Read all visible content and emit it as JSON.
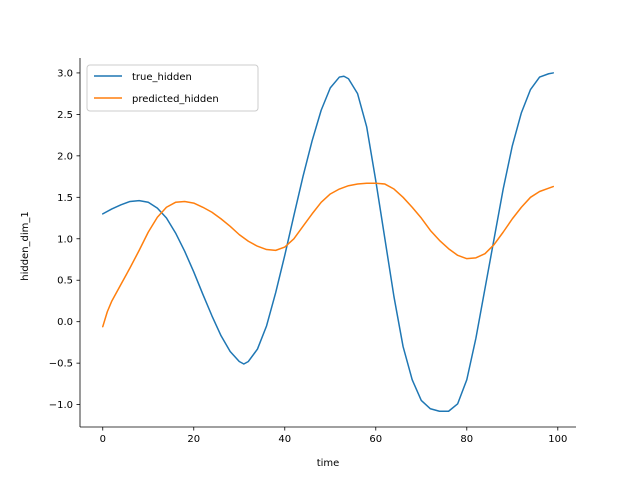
{
  "chart_data": {
    "type": "line",
    "title": "",
    "xlabel": "time",
    "ylabel": "hidden_dim_1",
    "xlim": [
      -5,
      104
    ],
    "ylim": [
      -1.27,
      3.18
    ],
    "xticks": [
      0,
      20,
      40,
      60,
      80,
      100
    ],
    "yticks": [
      -1.0,
      -0.5,
      0.0,
      0.5,
      1.0,
      1.5,
      2.0,
      2.5,
      3.0
    ],
    "ytick_labels": [
      "−1.0",
      "−0.5",
      "0.0",
      "0.5",
      "1.0",
      "1.5",
      "2.0",
      "2.5",
      "3.0"
    ],
    "grid": false,
    "legend_position": "top-left",
    "series": [
      {
        "name": "true_hidden",
        "color": "#1f77b4",
        "x": [
          0,
          2,
          4,
          6,
          8,
          10,
          12,
          14,
          16,
          18,
          20,
          22,
          24,
          26,
          28,
          30,
          31,
          32,
          34,
          36,
          38,
          40,
          42,
          44,
          46,
          48,
          50,
          52,
          53,
          54,
          56,
          58,
          60,
          62,
          64,
          66,
          68,
          70,
          72,
          74,
          76,
          78,
          80,
          82,
          84,
          86,
          88,
          90,
          92,
          94,
          96,
          98,
          99
        ],
        "values": [
          1.3,
          1.36,
          1.41,
          1.45,
          1.46,
          1.44,
          1.37,
          1.25,
          1.07,
          0.85,
          0.6,
          0.33,
          0.07,
          -0.17,
          -0.36,
          -0.48,
          -0.51,
          -0.48,
          -0.33,
          -0.05,
          0.35,
          0.8,
          1.28,
          1.75,
          2.18,
          2.55,
          2.82,
          2.95,
          2.96,
          2.93,
          2.75,
          2.35,
          1.7,
          1.0,
          0.3,
          -0.3,
          -0.7,
          -0.95,
          -1.05,
          -1.08,
          -1.08,
          -0.99,
          -0.7,
          -0.2,
          0.4,
          1.0,
          1.6,
          2.12,
          2.52,
          2.8,
          2.95,
          2.99,
          3.0
        ]
      },
      {
        "name": "predicted_hidden",
        "color": "#ff7f0e",
        "x": [
          0,
          1,
          2,
          4,
          6,
          8,
          10,
          12,
          14,
          16,
          18,
          20,
          22,
          24,
          26,
          28,
          30,
          32,
          34,
          36,
          38,
          40,
          42,
          44,
          46,
          48,
          50,
          52,
          54,
          56,
          58,
          60,
          62,
          64,
          66,
          68,
          70,
          72,
          74,
          76,
          78,
          80,
          82,
          84,
          86,
          88,
          90,
          92,
          94,
          96,
          98,
          99
        ],
        "values": [
          -0.06,
          0.12,
          0.25,
          0.45,
          0.65,
          0.86,
          1.08,
          1.26,
          1.38,
          1.44,
          1.45,
          1.43,
          1.38,
          1.32,
          1.24,
          1.15,
          1.05,
          0.97,
          0.91,
          0.87,
          0.86,
          0.9,
          1.0,
          1.15,
          1.3,
          1.44,
          1.54,
          1.6,
          1.64,
          1.66,
          1.67,
          1.67,
          1.66,
          1.6,
          1.5,
          1.38,
          1.25,
          1.1,
          0.98,
          0.88,
          0.8,
          0.76,
          0.77,
          0.82,
          0.93,
          1.08,
          1.24,
          1.38,
          1.5,
          1.57,
          1.61,
          1.63
        ]
      }
    ]
  }
}
